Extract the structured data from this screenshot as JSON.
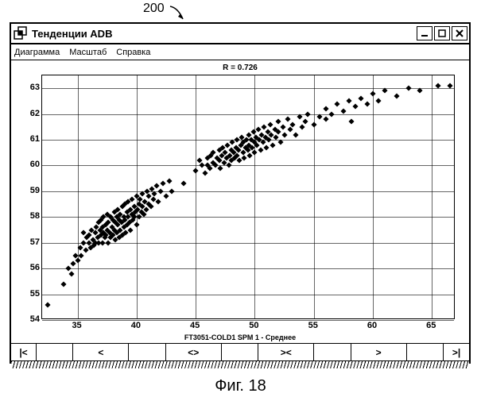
{
  "figure_ref": "200",
  "caption": "Фиг. 18",
  "window": {
    "title": "Тенденции ADB",
    "menu": [
      "Диаграмма",
      "Масштаб",
      "Справка"
    ]
  },
  "chart": {
    "type": "scatter",
    "title": "R = 0.726",
    "xlabel": "FT3051-COLD1 SPM 1 - Среднее",
    "xlim": [
      32,
      67
    ],
    "ylim": [
      54,
      63.5
    ],
    "xticks": [
      35,
      40,
      45,
      50,
      55,
      60,
      65
    ],
    "yticks": [
      54,
      55,
      56,
      57,
      58,
      59,
      60,
      61,
      62,
      63
    ],
    "marker": "diamond",
    "marker_size": 5,
    "marker_color": "#000000",
    "grid_color": "#000000",
    "background_color": "#ffffff",
    "tick_fontsize": 11,
    "title_fontsize": 10,
    "points": [
      [
        32.5,
        54.6
      ],
      [
        33.8,
        55.4
      ],
      [
        34.2,
        56.0
      ],
      [
        34.5,
        55.8
      ],
      [
        34.6,
        56.2
      ],
      [
        34.8,
        56.5
      ],
      [
        35.0,
        56.3
      ],
      [
        35.2,
        56.8
      ],
      [
        35.3,
        56.5
      ],
      [
        35.5,
        57.0
      ],
      [
        35.5,
        57.4
      ],
      [
        35.7,
        56.7
      ],
      [
        35.8,
        57.2
      ],
      [
        36.0,
        57.0
      ],
      [
        36.0,
        57.3
      ],
      [
        36.1,
        56.8
      ],
      [
        36.2,
        57.5
      ],
      [
        36.3,
        57.1
      ],
      [
        36.4,
        56.9
      ],
      [
        36.5,
        57.4
      ],
      [
        36.5,
        57.0
      ],
      [
        36.6,
        57.6
      ],
      [
        36.7,
        57.2
      ],
      [
        36.8,
        57.8
      ],
      [
        36.8,
        57.0
      ],
      [
        36.9,
        57.5
      ],
      [
        37.0,
        57.3
      ],
      [
        37.0,
        57.9
      ],
      [
        37.1,
        57.0
      ],
      [
        37.1,
        57.6
      ],
      [
        37.2,
        57.4
      ],
      [
        37.2,
        58.0
      ],
      [
        37.3,
        57.2
      ],
      [
        37.4,
        57.7
      ],
      [
        37.4,
        57.3
      ],
      [
        37.5,
        58.1
      ],
      [
        37.5,
        57.5
      ],
      [
        37.6,
        57.0
      ],
      [
        37.6,
        57.8
      ],
      [
        37.7,
        57.4
      ],
      [
        37.8,
        58.0
      ],
      [
        37.8,
        57.2
      ],
      [
        37.9,
        57.6
      ],
      [
        38.0,
        57.9
      ],
      [
        38.0,
        57.3
      ],
      [
        38.1,
        58.2
      ],
      [
        38.1,
        57.5
      ],
      [
        38.2,
        57.8
      ],
      [
        38.2,
        57.1
      ],
      [
        38.3,
        58.0
      ],
      [
        38.3,
        57.4
      ],
      [
        38.4,
        57.7
      ],
      [
        38.4,
        58.3
      ],
      [
        38.5,
        57.2
      ],
      [
        38.5,
        57.9
      ],
      [
        38.6,
        57.5
      ],
      [
        38.6,
        58.1
      ],
      [
        38.7,
        57.8
      ],
      [
        38.8,
        58.4
      ],
      [
        38.8,
        57.3
      ],
      [
        38.9,
        57.6
      ],
      [
        38.9,
        58.0
      ],
      [
        39.0,
        57.9
      ],
      [
        39.0,
        58.5
      ],
      [
        39.1,
        57.4
      ],
      [
        39.2,
        58.2
      ],
      [
        39.2,
        57.7
      ],
      [
        39.3,
        58.0
      ],
      [
        39.3,
        58.6
      ],
      [
        39.4,
        57.8
      ],
      [
        39.5,
        58.3
      ],
      [
        39.5,
        57.5
      ],
      [
        39.6,
        58.1
      ],
      [
        39.6,
        58.7
      ],
      [
        39.7,
        57.9
      ],
      [
        39.8,
        58.4
      ],
      [
        39.8,
        58.0
      ],
      [
        39.9,
        58.2
      ],
      [
        40.0,
        58.8
      ],
      [
        40.0,
        57.7
      ],
      [
        40.1,
        58.3
      ],
      [
        40.2,
        58.5
      ],
      [
        40.2,
        58.0
      ],
      [
        40.3,
        58.7
      ],
      [
        40.4,
        58.2
      ],
      [
        40.5,
        58.9
      ],
      [
        40.5,
        58.4
      ],
      [
        40.6,
        58.1
      ],
      [
        40.7,
        58.6
      ],
      [
        40.8,
        58.3
      ],
      [
        40.9,
        59.0
      ],
      [
        41.0,
        58.5
      ],
      [
        41.0,
        58.8
      ],
      [
        41.2,
        58.4
      ],
      [
        41.3,
        59.1
      ],
      [
        41.4,
        58.7
      ],
      [
        41.5,
        58.9
      ],
      [
        41.7,
        59.2
      ],
      [
        41.8,
        58.6
      ],
      [
        42.0,
        59.0
      ],
      [
        42.2,
        59.3
      ],
      [
        42.5,
        58.8
      ],
      [
        42.8,
        59.4
      ],
      [
        43.0,
        59.0
      ],
      [
        44.0,
        59.3
      ],
      [
        45.0,
        59.8
      ],
      [
        45.3,
        60.2
      ],
      [
        45.5,
        60.0
      ],
      [
        45.8,
        59.7
      ],
      [
        46.0,
        60.3
      ],
      [
        46.0,
        60.0
      ],
      [
        46.2,
        59.9
      ],
      [
        46.3,
        60.4
      ],
      [
        46.5,
        60.1
      ],
      [
        46.5,
        60.5
      ],
      [
        46.7,
        60.0
      ],
      [
        46.8,
        60.3
      ],
      [
        47.0,
        60.6
      ],
      [
        47.0,
        60.2
      ],
      [
        47.1,
        59.9
      ],
      [
        47.2,
        60.4
      ],
      [
        47.3,
        60.7
      ],
      [
        47.4,
        60.1
      ],
      [
        47.5,
        60.5
      ],
      [
        47.6,
        60.3
      ],
      [
        47.7,
        60.8
      ],
      [
        47.8,
        60.0
      ],
      [
        47.9,
        60.4
      ],
      [
        48.0,
        60.6
      ],
      [
        48.0,
        60.2
      ],
      [
        48.1,
        60.9
      ],
      [
        48.2,
        60.5
      ],
      [
        48.3,
        60.3
      ],
      [
        48.4,
        60.7
      ],
      [
        48.5,
        61.0
      ],
      [
        48.5,
        60.4
      ],
      [
        48.6,
        60.6
      ],
      [
        48.7,
        60.2
      ],
      [
        48.8,
        60.8
      ],
      [
        48.9,
        61.1
      ],
      [
        49.0,
        60.5
      ],
      [
        49.0,
        60.9
      ],
      [
        49.1,
        60.3
      ],
      [
        49.2,
        60.7
      ],
      [
        49.3,
        61.0
      ],
      [
        49.4,
        60.6
      ],
      [
        49.5,
        61.2
      ],
      [
        49.5,
        60.8
      ],
      [
        49.6,
        60.4
      ],
      [
        49.7,
        61.0
      ],
      [
        49.8,
        60.7
      ],
      [
        49.9,
        61.3
      ],
      [
        50.0,
        60.9
      ],
      [
        50.0,
        60.5
      ],
      [
        50.1,
        61.1
      ],
      [
        50.2,
        60.8
      ],
      [
        50.3,
        61.4
      ],
      [
        50.4,
        61.0
      ],
      [
        50.5,
        60.6
      ],
      [
        50.6,
        61.2
      ],
      [
        50.7,
        60.9
      ],
      [
        50.8,
        61.5
      ],
      [
        50.9,
        61.1
      ],
      [
        51.0,
        60.7
      ],
      [
        51.1,
        61.3
      ],
      [
        51.2,
        61.0
      ],
      [
        51.3,
        61.6
      ],
      [
        51.4,
        61.2
      ],
      [
        51.5,
        60.8
      ],
      [
        51.7,
        61.4
      ],
      [
        51.8,
        61.1
      ],
      [
        52.0,
        61.7
      ],
      [
        52.0,
        61.3
      ],
      [
        52.2,
        60.9
      ],
      [
        52.4,
        61.5
      ],
      [
        52.5,
        61.2
      ],
      [
        52.8,
        61.8
      ],
      [
        53.0,
        61.4
      ],
      [
        53.2,
        61.6
      ],
      [
        53.5,
        61.2
      ],
      [
        53.8,
        61.9
      ],
      [
        54.0,
        61.5
      ],
      [
        54.3,
        61.7
      ],
      [
        54.5,
        62.0
      ],
      [
        55.0,
        61.6
      ],
      [
        55.5,
        61.9
      ],
      [
        56.0,
        61.8
      ],
      [
        56.0,
        62.2
      ],
      [
        56.5,
        62.0
      ],
      [
        57.0,
        62.4
      ],
      [
        57.5,
        62.1
      ],
      [
        58.0,
        62.5
      ],
      [
        58.2,
        61.7
      ],
      [
        58.5,
        62.3
      ],
      [
        59.0,
        62.6
      ],
      [
        59.5,
        62.4
      ],
      [
        60.0,
        62.8
      ],
      [
        60.5,
        62.5
      ],
      [
        61.0,
        62.9
      ],
      [
        62.0,
        62.7
      ],
      [
        63.0,
        63.0
      ],
      [
        64.0,
        62.9
      ],
      [
        65.5,
        63.1
      ],
      [
        66.5,
        63.1
      ]
    ]
  },
  "nav": {
    "buttons": [
      "|<",
      "<",
      "<>",
      "><",
      ">",
      ">|"
    ]
  }
}
